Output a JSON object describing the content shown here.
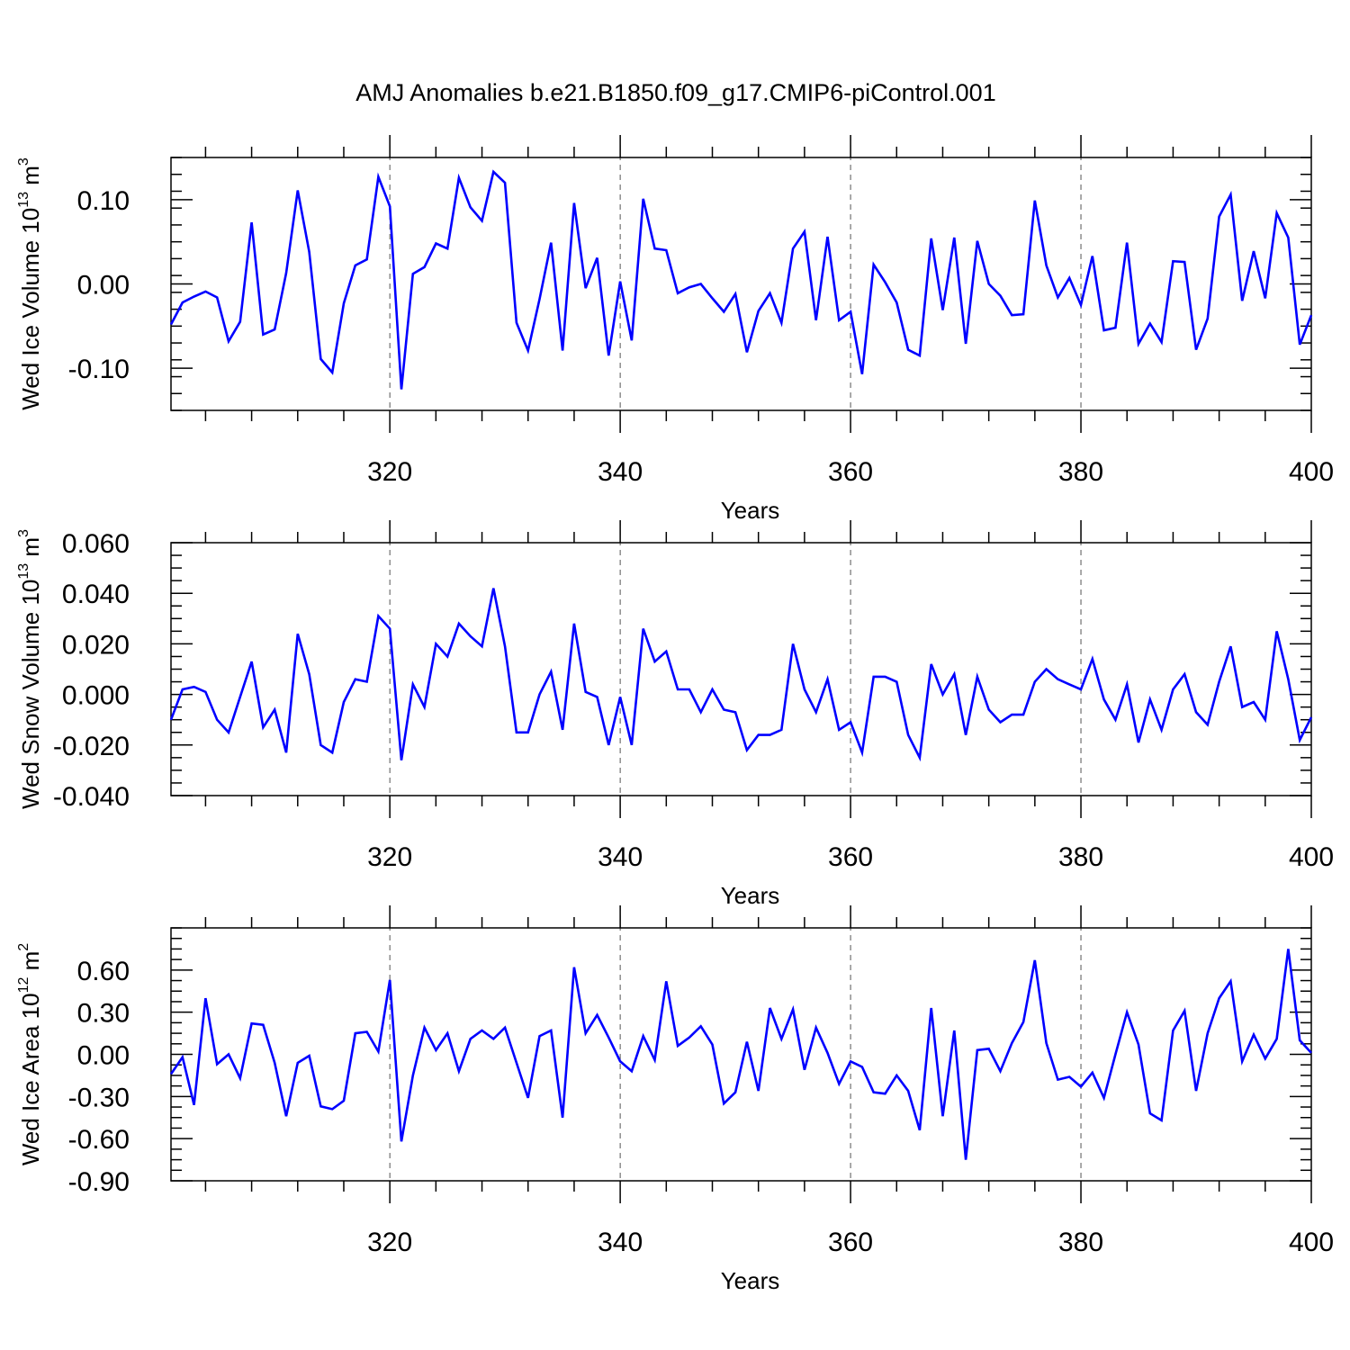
{
  "title": "AMJ Anomalies b.e21.B1850.f09_g17.CMIP6-piControl.001",
  "colors": {
    "series": "#0000ff",
    "axis": "#000000",
    "grid": "#555555"
  },
  "chart_data": [
    {
      "type": "line",
      "xlabel": "Years",
      "ylabel": {
        "text": "Wed Ice Volume 10",
        "exp": "13",
        "unit": " m",
        "unit_exp": "3"
      },
      "xlim": [
        301,
        400
      ],
      "ylim": [
        -0.15,
        0.15
      ],
      "xticks": [
        320,
        340,
        360,
        380,
        400
      ],
      "xtick_labels": [
        "320",
        "340",
        "360",
        "380",
        "400"
      ],
      "yticks": [
        -0.1,
        0.0,
        0.1
      ],
      "ytick_labels": [
        "-0.10",
        "0.00",
        "0.10"
      ],
      "y_minor_step": 0.02,
      "x_minor_step": 4,
      "grid_x": [
        320,
        340,
        360,
        380
      ],
      "x_start": 301,
      "values": [
        -0.048,
        -0.022,
        -0.015,
        -0.009,
        -0.016,
        -0.068,
        -0.045,
        0.073,
        -0.06,
        -0.054,
        0.013,
        0.111,
        0.038,
        -0.089,
        -0.105,
        -0.023,
        0.022,
        0.029,
        0.127,
        0.092,
        -0.125,
        0.012,
        0.02,
        0.048,
        0.042,
        0.126,
        0.091,
        0.075,
        0.133,
        0.12,
        -0.046,
        -0.079,
        -0.018,
        0.049,
        -0.079,
        0.096,
        -0.005,
        0.031,
        -0.085,
        0.003,
        -0.067,
        0.101,
        0.042,
        0.04,
        -0.011,
        -0.004,
        0.0,
        -0.017,
        -0.033,
        -0.012,
        -0.081,
        -0.032,
        -0.011,
        -0.046,
        0.042,
        0.062,
        -0.043,
        0.056,
        -0.043,
        -0.033,
        -0.107,
        0.023,
        0.002,
        -0.022,
        -0.078,
        -0.085,
        0.054,
        -0.031,
        0.055,
        -0.071,
        0.051,
        0.0,
        -0.014,
        -0.037,
        -0.036,
        0.099,
        0.022,
        -0.016,
        0.007,
        -0.025,
        0.033,
        -0.055,
        -0.052,
        0.049,
        -0.071,
        -0.047,
        -0.069,
        0.027,
        0.026,
        -0.078,
        -0.041,
        0.08,
        0.106,
        -0.02,
        0.039,
        -0.017,
        0.084,
        0.055,
        -0.072,
        -0.037
      ]
    },
    {
      "type": "line",
      "xlabel": "Years",
      "ylabel": {
        "text": "Wed Snow Volume 10",
        "exp": "13",
        "unit": " m",
        "unit_exp": "3"
      },
      "xlim": [
        301,
        400
      ],
      "ylim": [
        -0.04,
        0.06
      ],
      "xticks": [
        320,
        340,
        360,
        380,
        400
      ],
      "xtick_labels": [
        "320",
        "340",
        "360",
        "380",
        "400"
      ],
      "yticks": [
        -0.04,
        -0.02,
        0.0,
        0.02,
        0.04,
        0.06
      ],
      "ytick_labels": [
        "-0.040",
        "-0.020",
        "0.000",
        "0.020",
        "0.040",
        "0.060"
      ],
      "y_minor_step": 0.005,
      "x_minor_step": 4,
      "grid_x": [
        320,
        340,
        360,
        380
      ],
      "x_start": 301,
      "values": [
        -0.01,
        0.002,
        0.003,
        0.001,
        -0.01,
        -0.015,
        -0.001,
        0.013,
        -0.013,
        -0.006,
        -0.023,
        0.024,
        0.008,
        -0.02,
        -0.023,
        -0.003,
        0.006,
        0.005,
        0.031,
        0.026,
        -0.026,
        0.004,
        -0.005,
        0.02,
        0.015,
        0.028,
        0.023,
        0.019,
        0.042,
        0.019,
        -0.015,
        -0.015,
        0.0,
        0.009,
        -0.014,
        0.028,
        0.001,
        -0.001,
        -0.02,
        -0.001,
        -0.02,
        0.026,
        0.013,
        0.017,
        0.002,
        0.002,
        -0.007,
        0.002,
        -0.006,
        -0.007,
        -0.022,
        -0.016,
        -0.016,
        -0.014,
        0.02,
        0.002,
        -0.007,
        0.006,
        -0.014,
        -0.011,
        -0.023,
        0.007,
        0.007,
        0.005,
        -0.016,
        -0.025,
        0.012,
        0.0,
        0.008,
        -0.016,
        0.007,
        -0.006,
        -0.011,
        -0.008,
        -0.008,
        0.005,
        0.01,
        0.006,
        0.004,
        0.002,
        0.014,
        -0.002,
        -0.01,
        0.004,
        -0.019,
        -0.002,
        -0.014,
        0.002,
        0.008,
        -0.007,
        -0.012,
        0.005,
        0.019,
        -0.005,
        -0.003,
        -0.01,
        0.025,
        0.006,
        -0.018,
        -0.009
      ]
    },
    {
      "type": "line",
      "xlabel": "Years",
      "ylabel": {
        "text": "Wed Ice Area 10",
        "exp": "12",
        "unit": " m",
        "unit_exp": "2"
      },
      "xlim": [
        301,
        400
      ],
      "ylim": [
        -0.9,
        0.9
      ],
      "xticks": [
        320,
        340,
        360,
        380,
        400
      ],
      "xtick_labels": [
        "320",
        "340",
        "360",
        "380",
        "400"
      ],
      "yticks": [
        -0.9,
        -0.6,
        -0.3,
        0.0,
        0.3,
        0.6
      ],
      "ytick_labels": [
        "-0.90",
        "-0.60",
        "-0.30",
        "0.00",
        "0.30",
        "0.60"
      ],
      "y_minor_step": 0.075,
      "x_minor_step": 4,
      "grid_x": [
        320,
        340,
        360,
        380
      ],
      "x_start": 301,
      "values": [
        -0.14,
        -0.02,
        -0.36,
        0.4,
        -0.07,
        0.0,
        -0.17,
        0.22,
        0.21,
        -0.06,
        -0.44,
        -0.06,
        -0.01,
        -0.37,
        -0.39,
        -0.33,
        0.15,
        0.16,
        0.02,
        0.53,
        -0.62,
        -0.15,
        0.19,
        0.03,
        0.15,
        -0.12,
        0.11,
        0.17,
        0.11,
        0.19,
        -0.06,
        -0.31,
        0.13,
        0.17,
        -0.45,
        0.62,
        0.15,
        0.28,
        0.12,
        -0.05,
        -0.12,
        0.13,
        -0.04,
        0.52,
        0.06,
        0.12,
        0.2,
        0.07,
        -0.35,
        -0.27,
        0.09,
        -0.26,
        0.33,
        0.11,
        0.32,
        -0.11,
        0.19,
        0.01,
        -0.21,
        -0.05,
        -0.09,
        -0.27,
        -0.28,
        -0.15,
        -0.26,
        -0.54,
        0.33,
        -0.44,
        0.17,
        -0.75,
        0.03,
        0.04,
        -0.12,
        0.08,
        0.23,
        0.67,
        0.08,
        -0.18,
        -0.16,
        -0.23,
        -0.13,
        -0.31,
        0.0,
        0.3,
        0.07,
        -0.42,
        -0.47,
        0.17,
        0.31,
        -0.26,
        0.15,
        0.4,
        0.52,
        -0.05,
        0.14,
        -0.03,
        0.11,
        0.75,
        0.1,
        0.01
      ]
    }
  ]
}
